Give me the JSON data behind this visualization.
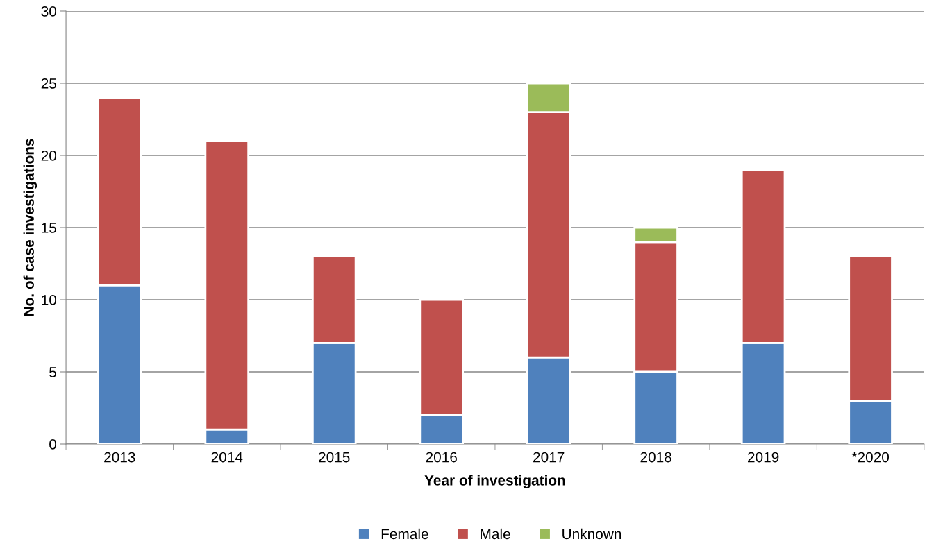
{
  "chart_data": {
    "type": "bar",
    "stacked": true,
    "xlabel": "Year of investigation",
    "ylabel": "No. of case investigations",
    "categories": [
      "2013",
      "2014",
      "2015",
      "2016",
      "2017",
      "2018",
      "2019",
      "*2020"
    ],
    "series": [
      {
        "name": "Female",
        "color": "#4f81bd",
        "values": [
          11,
          1,
          7,
          2,
          6,
          5,
          7,
          3
        ]
      },
      {
        "name": "Male",
        "color": "#c0504d",
        "values": [
          13,
          20,
          6,
          8,
          17,
          9,
          12,
          10
        ]
      },
      {
        "name": "Unknown",
        "color": "#9bbb59",
        "values": [
          null,
          null,
          null,
          null,
          2,
          1,
          null,
          null
        ]
      }
    ],
    "ylim": [
      0,
      30
    ],
    "yticks": [
      0,
      5,
      10,
      15,
      20,
      25,
      30
    ],
    "grid": "y",
    "legend": "bottom"
  }
}
